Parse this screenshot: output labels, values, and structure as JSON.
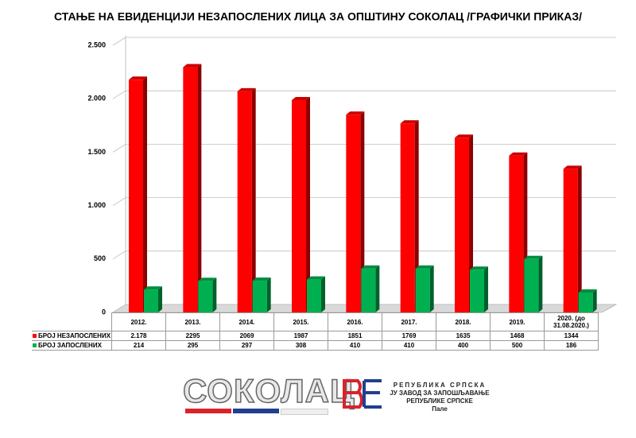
{
  "chart_data": {
    "type": "bar",
    "title": "СТАЊЕ НА ЕВИДЕНЦИЈИ НЕЗАПОСЛЕНИХ ЛИЦА ЗА ОПШТИНУ СОКОЛАЦ /ГРАФИЧКИ ПРИКАЗ/",
    "categories": [
      "2012.",
      "2013.",
      "2014.",
      "2015.",
      "2016.",
      "2017.",
      "2018.",
      "2019.",
      "2020. (до 31.08.2020.)"
    ],
    "series": [
      {
        "name": "БРОЈ НЕЗАПОСЛЕНИХ",
        "color": "#ff0000",
        "values": [
          2178,
          2295,
          2069,
          1987,
          1851,
          1769,
          1635,
          1468,
          1344
        ],
        "value_labels": [
          "2.178",
          "2295",
          "2069",
          "1987",
          "1851",
          "1769",
          "1635",
          "1468",
          "1344"
        ]
      },
      {
        "name": "БРОЈ ЗАПОСЛЕНИХ",
        "color": "#00b050",
        "values": [
          214,
          295,
          297,
          308,
          410,
          410,
          400,
          500,
          186
        ]
      }
    ],
    "ylim": [
      0,
      2500
    ],
    "yticks": [
      0,
      500,
      {
        "value": 1000,
        "label": "1.000"
      },
      {
        "value": 1500,
        "label": "1.500"
      },
      {
        "value": 2000,
        "label": "2.000"
      },
      {
        "value": 2500,
        "label": "2.500"
      }
    ],
    "grid": true
  },
  "footer": {
    "logo": "СОКОЛАЦ",
    "org_lines": [
      "РЕПУБЛИКА СРПСКА",
      "ЈУ ЗАВОД ЗА ЗАПОШЉАВАЊЕ",
      "РЕПУБЛИКЕ СРПСКЕ",
      "Пале"
    ]
  }
}
